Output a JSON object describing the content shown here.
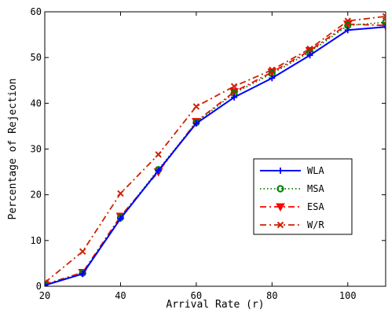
{
  "chart_data": {
    "type": "line",
    "xlabel": "Arrival Rate (r)",
    "ylabel": "Percentage of Rejection",
    "xlim": [
      20,
      110
    ],
    "ylim": [
      0,
      60
    ],
    "xticks": [
      20,
      40,
      60,
      80,
      100
    ],
    "yticks": [
      0,
      10,
      20,
      30,
      40,
      50,
      60
    ],
    "x": [
      20,
      30,
      40,
      50,
      60,
      70,
      80,
      90,
      100,
      110
    ],
    "grid": false,
    "legend_position": "right",
    "series": [
      {
        "name": "WLA",
        "color": "#0000ff",
        "marker": "plus",
        "dash": "solid",
        "values": [
          0.2,
          2.7,
          14.8,
          25.3,
          35.6,
          41.3,
          45.5,
          50.5,
          56.0,
          56.7
        ]
      },
      {
        "name": "MSA",
        "color": "#008000",
        "marker": "circle",
        "dash": "dotted",
        "values": [
          0.3,
          2.9,
          15.0,
          25.5,
          35.8,
          42.2,
          46.5,
          51.2,
          57.0,
          57.7
        ]
      },
      {
        "name": "ESA",
        "color": "#ff0000",
        "marker": "triangle",
        "dash": "dashdot",
        "values": [
          0.4,
          3.0,
          15.3,
          25.0,
          36.0,
          42.5,
          46.8,
          51.5,
          57.3,
          57.0
        ]
      },
      {
        "name": "W/R",
        "color": "#cc2200",
        "marker": "x",
        "dash": "dashdot",
        "values": [
          0.8,
          7.6,
          20.3,
          28.8,
          39.3,
          43.7,
          47.3,
          51.9,
          58.0,
          59.0
        ]
      }
    ]
  }
}
